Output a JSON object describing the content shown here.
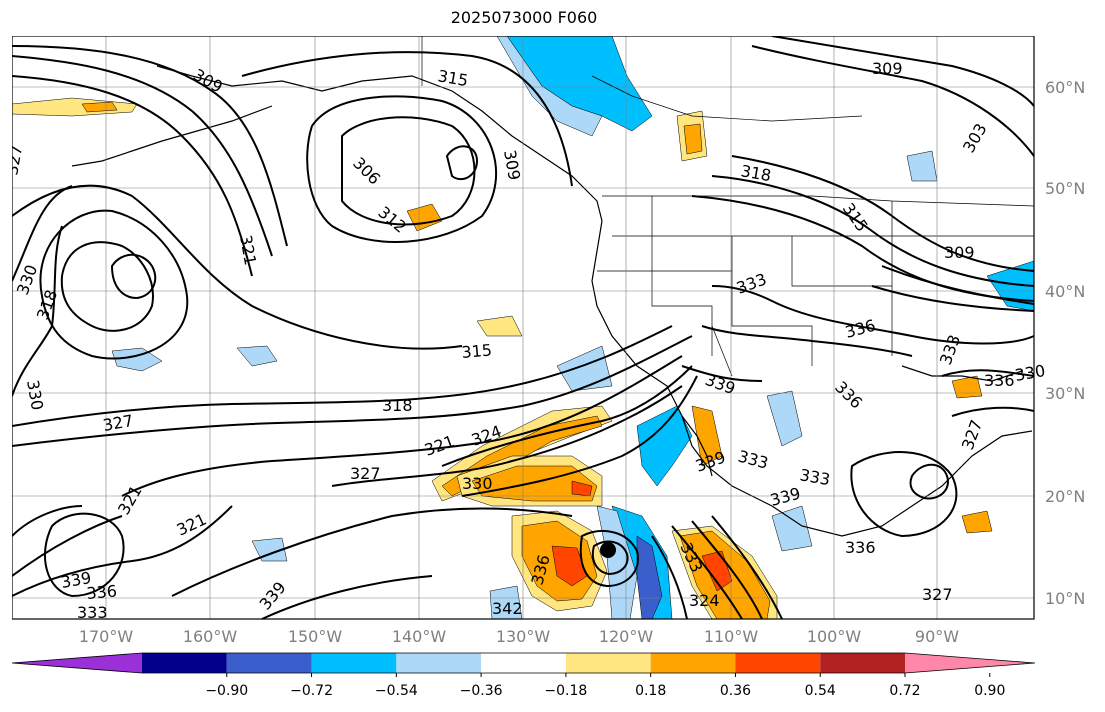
{
  "title": "2025073000 F060",
  "lat_labels": [
    "60°N",
    "50°N",
    "40°N",
    "30°N",
    "20°N",
    "10°N"
  ],
  "lon_labels": [
    "170°W",
    "160°W",
    "150°W",
    "140°W",
    "130°W",
    "120°W",
    "110°W",
    "100°W",
    "90°W"
  ],
  "colorbar": {
    "tick_labels": [
      "−0.90",
      "−0.72",
      "−0.54",
      "−0.36",
      "−0.18",
      "0.18",
      "0.36",
      "0.54",
      "0.72",
      "0.90"
    ],
    "colors": [
      "#9b30d9",
      "#00008b",
      "#3a5fcd",
      "#00bfff",
      "#add8f7",
      "#ffffff",
      "#ffe680",
      "#ffa500",
      "#ff4500",
      "#b22222",
      "#ff88aa"
    ]
  },
  "contour_labels": [
    "309",
    "315",
    "306",
    "312",
    "309",
    "321",
    "330",
    "318",
    "327",
    "330",
    "327",
    "318",
    "315",
    "324",
    "321",
    "330",
    "327",
    "321",
    "321",
    "339",
    "336",
    "333",
    "336",
    "339",
    "342",
    "309",
    "318",
    "315",
    "309",
    "303",
    "333",
    "336",
    "339",
    "336",
    "333",
    "336",
    "330",
    "327",
    "339",
    "333",
    "333",
    "339",
    "336",
    "327",
    "324",
    "333"
  ],
  "colors": {
    "contour": "#000000",
    "grid": "#808080",
    "coast": "#000000"
  }
}
